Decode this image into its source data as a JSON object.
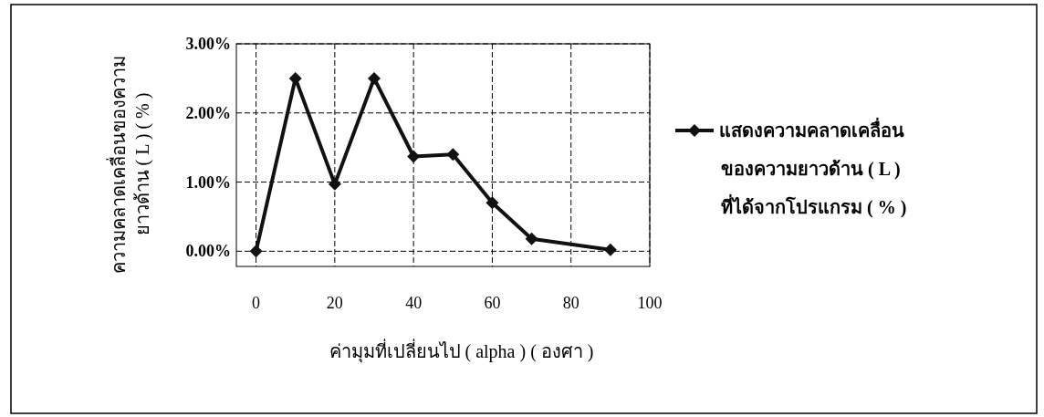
{
  "chart_data": {
    "type": "line",
    "xlabel": "ค่ามุมที่เปลี่ยนไป ( alpha ) ( องศา )",
    "ylabel": "ความคลาดเคลื่อนของความ\nยาวด้าน ( L ) ( % )",
    "x": [
      0,
      10,
      20,
      30,
      40,
      50,
      60,
      70,
      90
    ],
    "series": [
      {
        "name": "แสดงความคลาดเคลื่อน\nของความยาวด้าน ( L )\nที่ได้จากโปรแกรม ( % )",
        "color": "#111111",
        "values": [
          0,
          2.5,
          0.97,
          2.5,
          1.37,
          1.4,
          0.7,
          0.18,
          0.02
        ]
      }
    ],
    "xlim": [
      -5,
      100
    ],
    "xticks": [
      0,
      20,
      40,
      60,
      80,
      100
    ],
    "ylim": [
      -0.22,
      3
    ],
    "yticks": [
      {
        "value": 0,
        "label": "0.00%"
      },
      {
        "value": 1,
        "label": "1.00%"
      },
      {
        "value": 2,
        "label": "2.00%"
      },
      {
        "value": 3,
        "label": "3.00%"
      }
    ],
    "grid": true,
    "legend": "right",
    "marker": "diamond",
    "line_style": "solid"
  }
}
